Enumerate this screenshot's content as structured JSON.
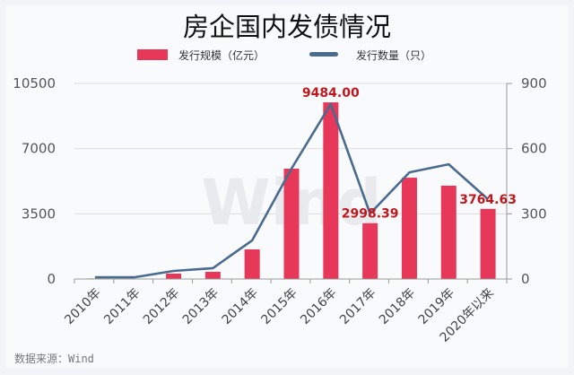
{
  "chart_data": {
    "type": "bar+line",
    "title": "房企国内发债情况",
    "categories": [
      "2010年",
      "2011年",
      "2012年",
      "2013年",
      "2014年",
      "2015年",
      "2016年",
      "2017年",
      "2018年",
      "2019年",
      "2020年以来"
    ],
    "series": [
      {
        "name": "发行规模（亿元）",
        "type": "bar",
        "axis": "left",
        "color": "#e8385a",
        "values": [
          30,
          20,
          290,
          385,
          1590,
          5925,
          9484.0,
          2998.39,
          5440,
          5010,
          3764.63
        ]
      },
      {
        "name": "发行数量（只）",
        "type": "line",
        "axis": "right",
        "color": "#4a6a8e",
        "values": [
          8,
          8,
          37,
          50,
          178,
          508,
          805,
          301,
          491,
          528,
          367
        ]
      }
    ],
    "data_labels": [
      {
        "category": "2016年",
        "text": "9484.00"
      },
      {
        "category": "2017年",
        "text": "2998.39"
      },
      {
        "category": "2020年以来",
        "text": "3764.63"
      }
    ],
    "y_left": {
      "ticks": [
        0,
        3500,
        7000,
        10500
      ],
      "ylim": [
        0,
        10500
      ]
    },
    "y_right": {
      "ticks": [
        0,
        300,
        600,
        900
      ],
      "ylim": [
        0,
        900
      ]
    },
    "grid": true,
    "legend_position": "top",
    "watermark": "Wind"
  },
  "source": "数据来源：Wind"
}
